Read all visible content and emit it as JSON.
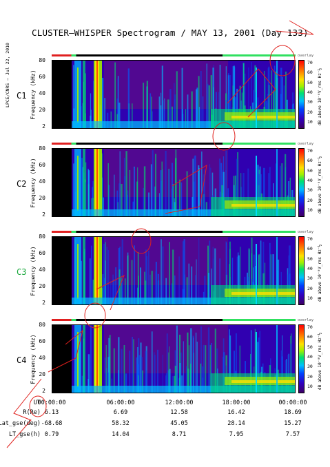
{
  "title": "CLUSTER–WHISPER Spectrogram / MAY 13, 2001 (Day 133)",
  "side_stamp": "LPCE/CNRS – Jul 22, 2010",
  "ylabel": "Frequency (kHz)",
  "colorbar": {
    "top_label": "overlay",
    "ticks": [
      "70",
      "60",
      "50",
      "40",
      "30",
      "20",
      "10"
    ],
    "units": "dB above 10⁻⁸V_rms Hz⁻½",
    "colors": [
      "#3d0063",
      "#3000c0",
      "#0040ff",
      "#00c0ff",
      "#00e070",
      "#a0f000",
      "#ffe000",
      "#ff8000",
      "#ff0000"
    ]
  },
  "chart_data": {
    "type": "heatmap",
    "title": "CLUSTER–WHISPER Spectrogram / MAY 13, 2001 (Day 133)",
    "ylabel": "Frequency (kHz)",
    "yticks": [
      "80",
      "60",
      "40",
      "20",
      "2"
    ],
    "ylim": [
      2,
      80
    ],
    "colorbar_range": [
      10,
      70
    ],
    "panels": [
      {
        "name": "C1",
        "color": "#000000"
      },
      {
        "name": "C2",
        "color": "#000000"
      },
      {
        "name": "C3",
        "color": "#19a83c"
      },
      {
        "name": "C4",
        "color": "#000000"
      }
    ],
    "time_axis": {
      "label": "UT",
      "ticks": [
        "00:00:00",
        "06:00:00",
        "12:00:00",
        "18:00:00",
        "00:00:00"
      ]
    },
    "ephemeris": [
      {
        "label": "R(Re)",
        "values": [
          "6.13",
          "6.69",
          "12.58",
          "16.42",
          "18.69"
        ]
      },
      {
        "label": "Lat_gse(deg)",
        "values": [
          "-68.68",
          "58.32",
          "45.05",
          "28.14",
          "15.27"
        ]
      },
      {
        "label": "LT_gse(h)",
        "values": [
          "0.79",
          "14.04",
          "8.71",
          "7.95",
          "7.57"
        ]
      }
    ]
  }
}
